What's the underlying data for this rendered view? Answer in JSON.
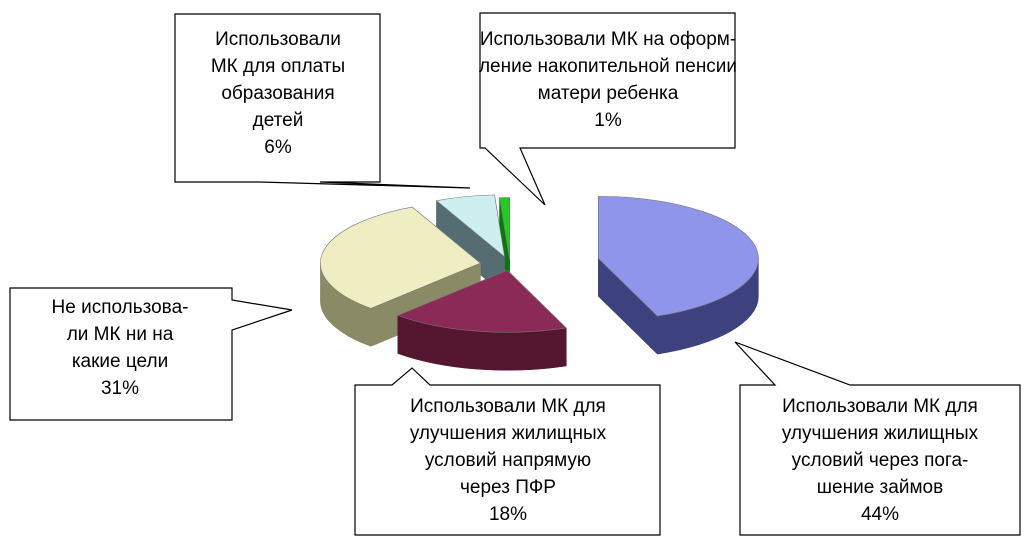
{
  "chart_data": {
    "type": "pie3d",
    "categories": [
      "Использовали МК для\nулучшения жилищных\nусловий через пога-\nшение займов",
      "Использовали МК для\nулучшения жилищных\nусловий напрямую\nчерез ПФР",
      "Не использова-\nли МК ни на\nкакие цели",
      "Использовали\nМК для оплаты\nобразования\nдетей",
      "Использовали МК на оформ-\nление накопительной пенсии\nматери ребенка"
    ],
    "values": [
      44,
      18,
      31,
      6,
      1
    ],
    "value_labels": [
      "44%",
      "18%",
      "31%",
      "6%",
      "1%"
    ],
    "colors": [
      "#8f95ea",
      "#8c2a57",
      "#eeeec2",
      "#cdeff0",
      "#1fcc1f"
    ],
    "side_colors": [
      "#3d427e",
      "#55162f",
      "#8a8a66",
      "#556d72",
      "#0b760b"
    ]
  }
}
